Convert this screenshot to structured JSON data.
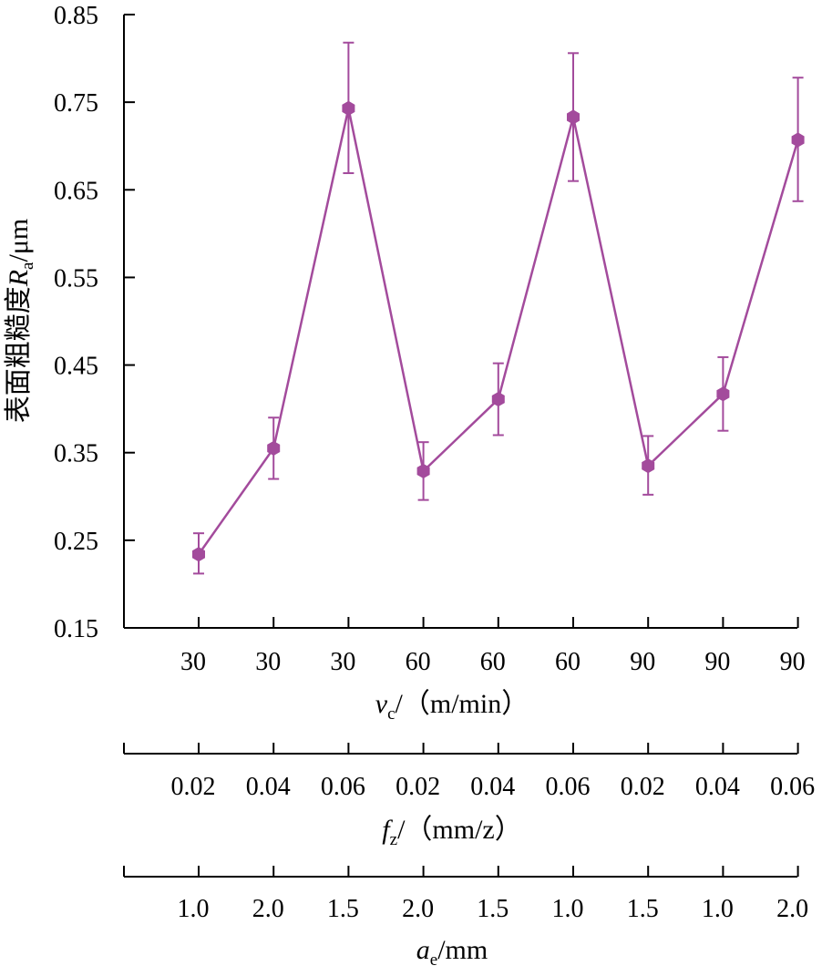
{
  "chart_data": {
    "type": "line",
    "series_color": "#a34b9c",
    "ylabel": {
      "main": "表面粗糙度",
      "symbol": "R",
      "subscript": "a",
      "unit": "/μm"
    },
    "ylim": [
      0.15,
      0.85
    ],
    "yticks": [
      "0.15",
      "0.25",
      "0.35",
      "0.45",
      "0.55",
      "0.65",
      "0.75",
      "0.85"
    ],
    "grid": false,
    "points": [
      {
        "vc": "30",
        "fz": "0.02",
        "ae": "1.0",
        "value": 0.234,
        "err_low": 0.212,
        "err_high": 0.258
      },
      {
        "vc": "30",
        "fz": "0.04",
        "ae": "2.0",
        "value": 0.355,
        "err_low": 0.32,
        "err_high": 0.39
      },
      {
        "vc": "30",
        "fz": "0.06",
        "ae": "1.5",
        "value": 0.743,
        "err_low": 0.669,
        "err_high": 0.818
      },
      {
        "vc": "60",
        "fz": "0.02",
        "ae": "2.0",
        "value": 0.329,
        "err_low": 0.296,
        "err_high": 0.362
      },
      {
        "vc": "60",
        "fz": "0.04",
        "ae": "1.5",
        "value": 0.411,
        "err_low": 0.37,
        "err_high": 0.452
      },
      {
        "vc": "60",
        "fz": "0.06",
        "ae": "1.0",
        "value": 0.733,
        "err_low": 0.66,
        "err_high": 0.806
      },
      {
        "vc": "90",
        "fz": "0.02",
        "ae": "1.5",
        "value": 0.335,
        "err_low": 0.302,
        "err_high": 0.369
      },
      {
        "vc": "90",
        "fz": "0.04",
        "ae": "1.0",
        "value": 0.417,
        "err_low": 0.375,
        "err_high": 0.459
      },
      {
        "vc": "90",
        "fz": "0.06",
        "ae": "2.0",
        "value": 0.707,
        "err_low": 0.637,
        "err_high": 0.778
      }
    ],
    "x_axes": [
      {
        "key": "vc",
        "symbol": "v",
        "subscript": "c",
        "unit": "/（m/min）",
        "ticks": [
          "30",
          "30",
          "30",
          "60",
          "60",
          "60",
          "90",
          "90",
          "90"
        ]
      },
      {
        "key": "fz",
        "symbol": "f",
        "subscript": "z",
        "unit": "/（mm/z）",
        "ticks": [
          "0.02",
          "0.04",
          "0.06",
          "0.02",
          "0.04",
          "0.06",
          "0.02",
          "0.04",
          "0.06"
        ]
      },
      {
        "key": "ae",
        "symbol": "a",
        "subscript": "e",
        "unit": "/mm",
        "ticks": [
          "1.0",
          "2.0",
          "1.5",
          "2.0",
          "1.5",
          "1.0",
          "1.5",
          "1.0",
          "2.0"
        ]
      }
    ]
  }
}
